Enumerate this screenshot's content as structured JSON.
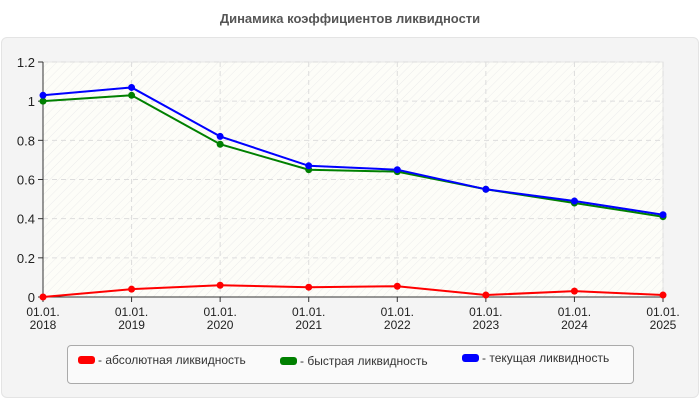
{
  "title": "Динамика коэффициентов ликвидности",
  "chart_data": {
    "type": "line",
    "title": "Динамика коэффициентов ликвидности",
    "xlabel": "",
    "ylabel": "",
    "categories": [
      "01.01.2018",
      "01.01.2019",
      "01.01.2020",
      "01.01.2021",
      "01.01.2022",
      "01.01.2023",
      "01.01.2024",
      "01.01.2025"
    ],
    "x_tick_labels": [
      [
        "01.01.",
        "2018"
      ],
      [
        "01.01.",
        "2019"
      ],
      [
        "01.01.",
        "2020"
      ],
      [
        "01.01.",
        "2021"
      ],
      [
        "01.01.",
        "2022"
      ],
      [
        "01.01.",
        "2023"
      ],
      [
        "01.01.",
        "2024"
      ],
      [
        "01.01.",
        "2025"
      ]
    ],
    "y_ticks": [
      "0",
      "0.2",
      "0.4",
      "0.6",
      "0.8",
      "1",
      "1.2"
    ],
    "ylim": [
      0,
      1.2
    ],
    "grid": true,
    "legend_position": "bottom",
    "series": [
      {
        "name": "абсолютная ликвидность",
        "color": "#ff0000",
        "values": [
          0.0,
          0.04,
          0.06,
          0.05,
          0.055,
          0.01,
          0.03,
          0.01
        ]
      },
      {
        "name": "быстрая ликвидность",
        "color": "#008000",
        "values": [
          1.0,
          1.03,
          0.78,
          0.65,
          0.64,
          0.55,
          0.48,
          0.41
        ]
      },
      {
        "name": "текущая ликвидность",
        "color": "#0000ff",
        "values": [
          1.03,
          1.07,
          0.82,
          0.67,
          0.65,
          0.55,
          0.49,
          0.42
        ]
      }
    ]
  },
  "legend": {
    "items": [
      {
        "label": "- абсолютная ликвидность",
        "color": "#ff0000"
      },
      {
        "label": "- быстрая ликвидность",
        "color": "#008000"
      },
      {
        "label": "- текущая ликвидность",
        "color": "#0000ff"
      }
    ]
  }
}
